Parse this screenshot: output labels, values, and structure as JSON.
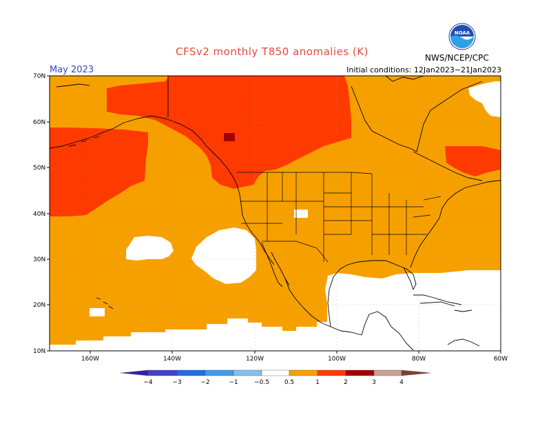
{
  "title": "CFSv2 monthly T850 anomalies (K)",
  "valid_month": "May 2023",
  "initial_conditions": "Initial conditions: 12Jan2023−21Jan2023",
  "organization": "NWS/NCEP/CPC",
  "logo_text": "NOAA",
  "lat_labels": [
    "70N",
    "60N",
    "50N",
    "40N",
    "30N",
    "20N",
    "10N"
  ],
  "lon_labels": [
    "160W",
    "140W",
    "120W",
    "100W",
    "80W",
    "60W"
  ],
  "colorbar": {
    "labels": [
      "−4",
      "−3",
      "−2",
      "−1",
      "−0.5",
      "0.5",
      "1",
      "2",
      "3",
      "4"
    ],
    "colors": [
      "#3a1fa8",
      "#4040c8",
      "#1e6ee0",
      "#3e9ce8",
      "#80c0f0",
      "#ffffff",
      "#f6a000",
      "#ff3a00",
      "#a00000",
      "#c8a090",
      "#7a4030"
    ]
  },
  "field_colors": {
    "over_0p5": "#f6a000",
    "over_1": "#ff3a00",
    "over_2": "#a00000",
    "neutral": "#ffffff"
  }
}
